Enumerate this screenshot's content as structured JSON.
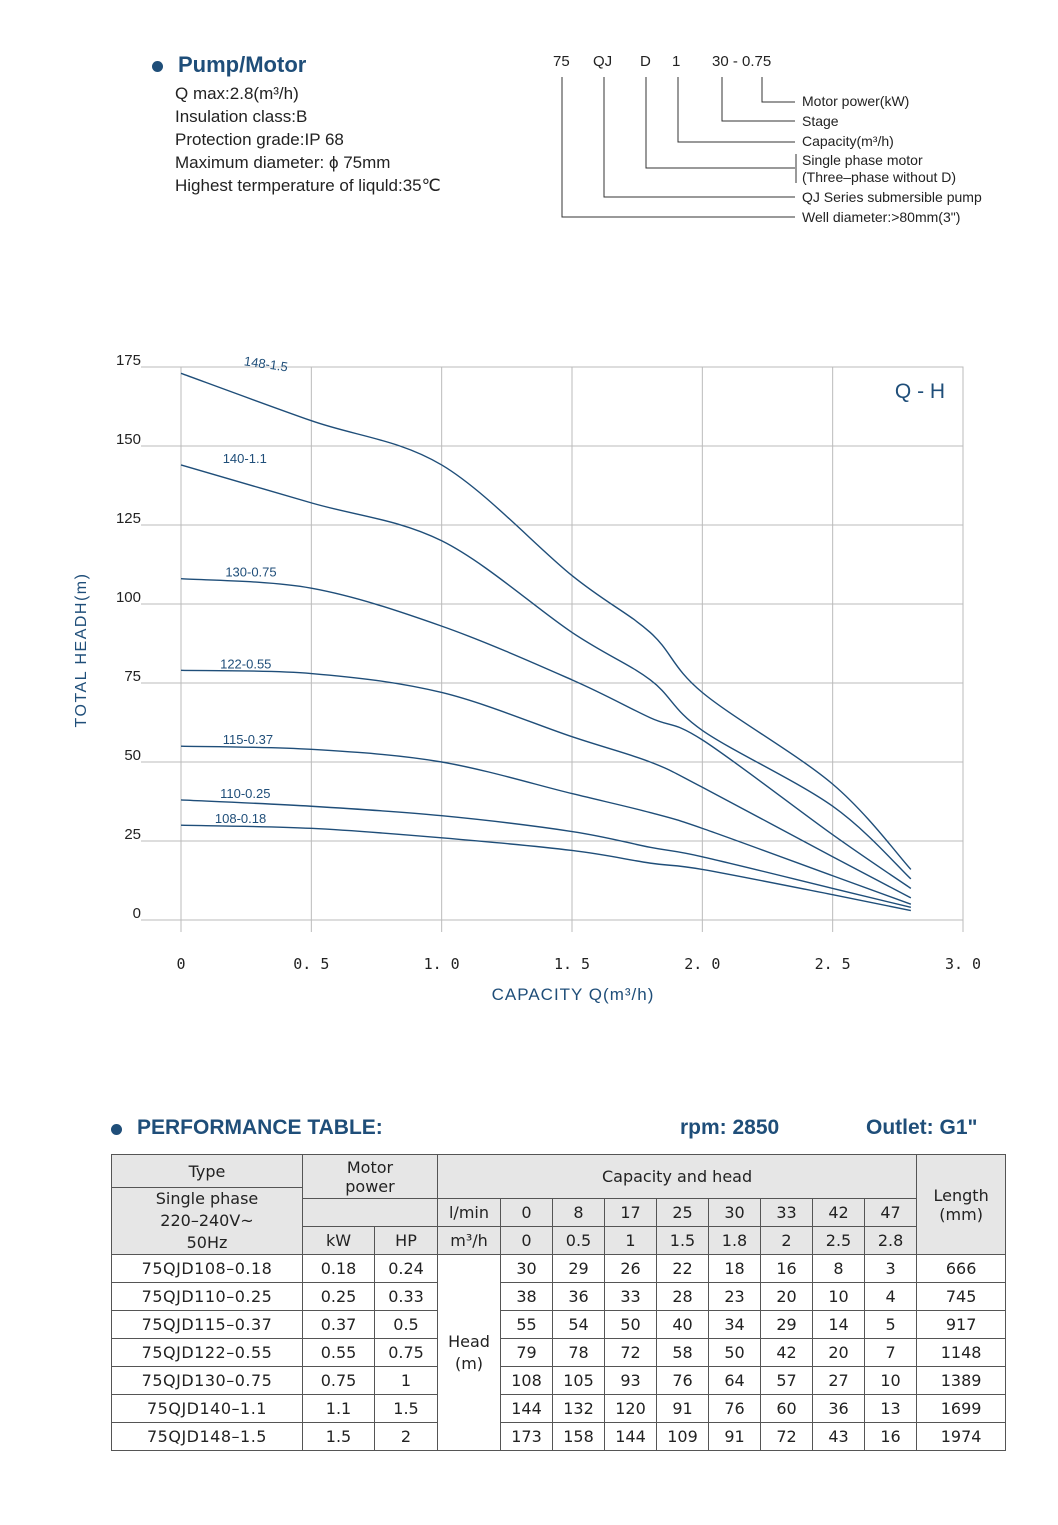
{
  "spec": {
    "title": "Pump/Motor",
    "lines": [
      "Q max:2.8(m³/h)",
      "Insulation class:B",
      "Protection grade:IP 68",
      "Maximum diameter: ϕ 75mm",
      "Highest termperature of liquld:35℃"
    ]
  },
  "model_code": {
    "parts": [
      "75",
      "QJ",
      "D",
      "1",
      "30 - 0.75"
    ],
    "legend": [
      "Motor power(kW)",
      "Stage",
      "Capacity(m³/h)",
      "Single phase motor",
      "(Three–phase without D)",
      "QJ Series submersible pump",
      "Well diameter:>80mm(3\")"
    ]
  },
  "chart_data": {
    "type": "line",
    "title": "Q - H",
    "xlabel": "CAPACITY  Q(m³/h)",
    "ylabel": "TOTAL HEADH(m)",
    "xlim": [
      0,
      3.0
    ],
    "ylim": [
      0,
      175
    ],
    "xticks": [
      "0",
      "0. 5",
      "1. 0",
      "1. 5",
      "2. 0",
      "2. 5",
      "3. 0"
    ],
    "yticks": [
      "0",
      "25",
      "50",
      "75",
      "100",
      "125",
      "150",
      "175"
    ],
    "grid": true,
    "x": [
      0,
      0.5,
      1.0,
      1.5,
      1.8,
      2.0,
      2.5,
      2.8
    ],
    "series": [
      {
        "name": "108-0.18",
        "values": [
          30,
          29,
          26,
          22,
          18,
          16,
          8,
          3
        ]
      },
      {
        "name": "110-0.25",
        "values": [
          38,
          36,
          33,
          28,
          23,
          20,
          10,
          4
        ]
      },
      {
        "name": "115-0.37",
        "values": [
          55,
          54,
          50,
          40,
          34,
          29,
          14,
          5
        ]
      },
      {
        "name": "122-0.55",
        "values": [
          79,
          78,
          72,
          58,
          50,
          42,
          20,
          7
        ]
      },
      {
        "name": "130-0.75",
        "values": [
          108,
          105,
          93,
          76,
          64,
          57,
          27,
          10
        ]
      },
      {
        "name": "140-1.1",
        "values": [
          144,
          132,
          120,
          91,
          76,
          60,
          36,
          13
        ]
      },
      {
        "name": "148-1.5",
        "values": [
          173,
          158,
          144,
          109,
          91,
          72,
          43,
          16
        ]
      }
    ],
    "line_color": "#1f4e79"
  },
  "table": {
    "title": "PERFORMANCE TABLE:",
    "rpm": "rpm: 2850",
    "outlet": "Outlet:   G1\"",
    "type_header": "Type",
    "single_phase_header": "Single phase 220–240V~ 50Hz",
    "motor_power_header": "Motor power",
    "capacity_head_header": "Capacity and head",
    "length_header": "Length (mm)",
    "kw_header": "kW",
    "hp_header": "HP",
    "lmin_header": "l/min",
    "m3h_header": "m³/h",
    "head_label": "Head (m)",
    "lmin_values": [
      "0",
      "8",
      "17",
      "25",
      "30",
      "33",
      "42",
      "47"
    ],
    "m3h_values": [
      "0",
      "0.5",
      "1",
      "1.5",
      "1.8",
      "2",
      "2.5",
      "2.8"
    ],
    "rows": [
      {
        "model": "75QJD108–0.18",
        "kw": "0.18",
        "hp": "0.24",
        "heads": [
          "30",
          "29",
          "26",
          "22",
          "18",
          "16",
          "8",
          "3"
        ],
        "length": "666"
      },
      {
        "model": "75QJD110–0.25",
        "kw": "0.25",
        "hp": "0.33",
        "heads": [
          "38",
          "36",
          "33",
          "28",
          "23",
          "20",
          "10",
          "4"
        ],
        "length": "745"
      },
      {
        "model": "75QJD115–0.37",
        "kw": "0.37",
        "hp": "0.5",
        "heads": [
          "55",
          "54",
          "50",
          "40",
          "34",
          "29",
          "14",
          "5"
        ],
        "length": "917"
      },
      {
        "model": "75QJD122–0.55",
        "kw": "0.55",
        "hp": "0.75",
        "heads": [
          "79",
          "78",
          "72",
          "58",
          "50",
          "42",
          "20",
          "7"
        ],
        "length": "1148"
      },
      {
        "model": "75QJD130–0.75",
        "kw": "0.75",
        "hp": "1",
        "heads": [
          "108",
          "105",
          "93",
          "76",
          "64",
          "57",
          "27",
          "10"
        ],
        "length": "1389"
      },
      {
        "model": "75QJD140–1.1",
        "kw": "1.1",
        "hp": "1.5",
        "heads": [
          "144",
          "132",
          "120",
          "91",
          "76",
          "60",
          "36",
          "13"
        ],
        "length": "1699"
      },
      {
        "model": "75QJD148–1.5",
        "kw": "1.5",
        "hp": "2",
        "heads": [
          "173",
          "158",
          "144",
          "109",
          "91",
          "72",
          "43",
          "16"
        ],
        "length": "1974"
      }
    ]
  }
}
